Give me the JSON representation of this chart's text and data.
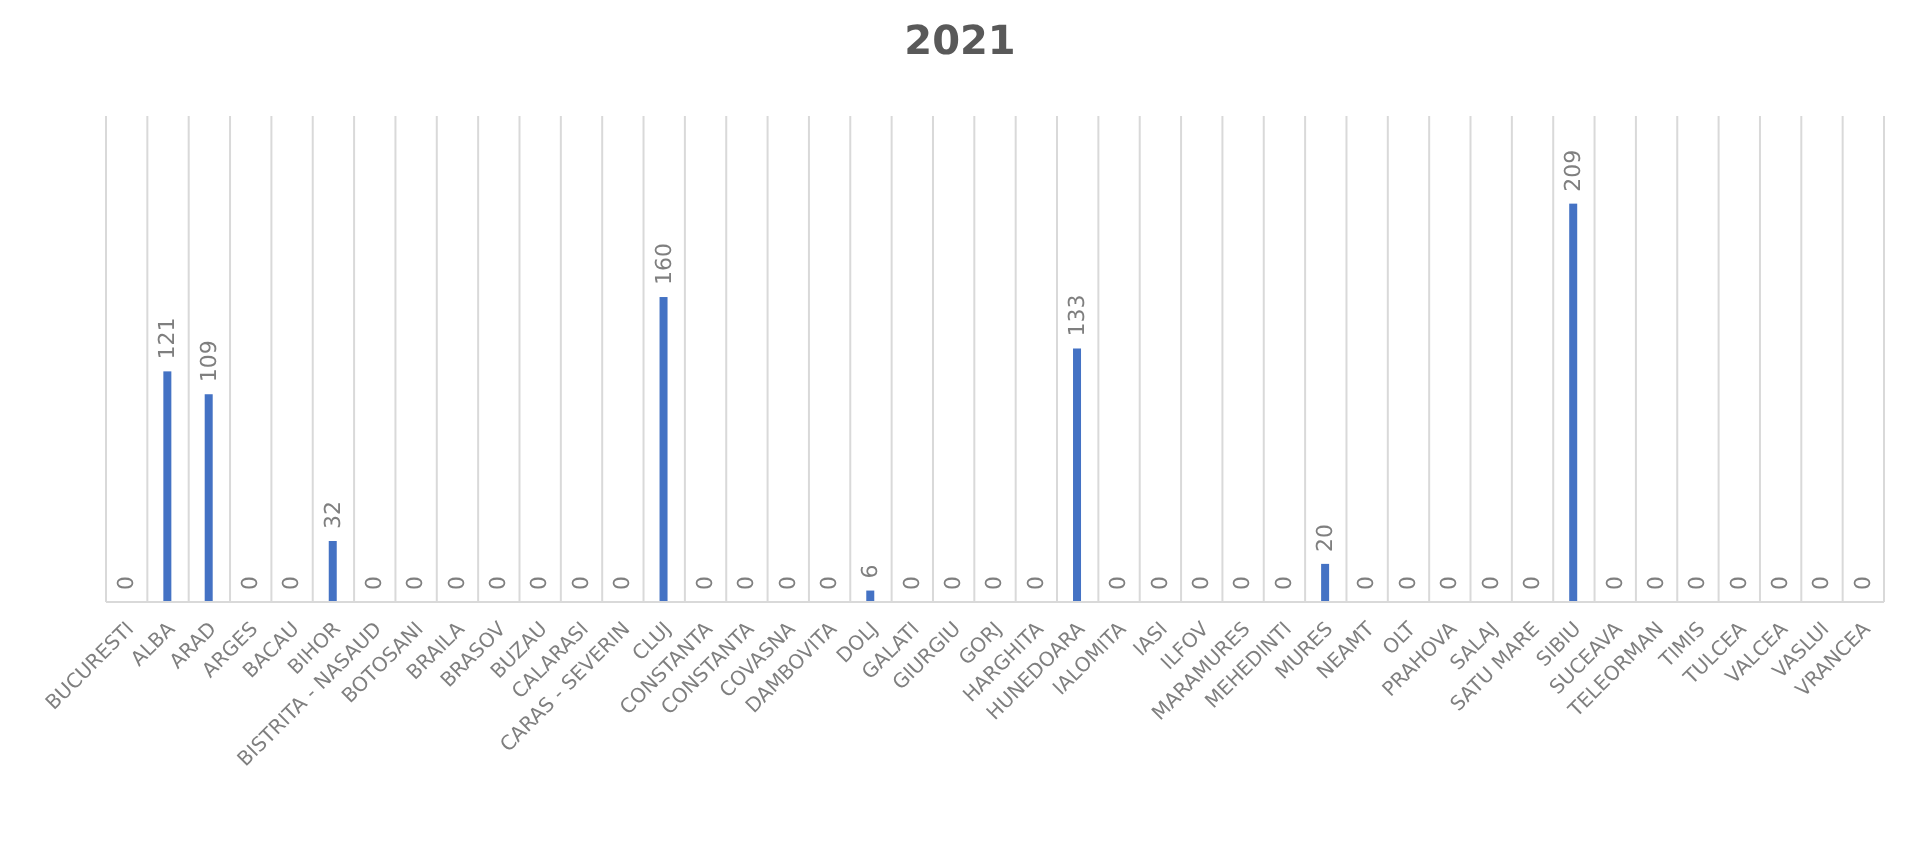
{
  "chart_data": {
    "type": "bar",
    "title": "2021",
    "categories": [
      "BUCURESTI",
      "ALBA",
      "ARAD",
      "ARGES",
      "BACAU",
      "BIHOR",
      "BISTRITA - NASAUD",
      "BOTOSANI",
      "BRAILA",
      "BRASOV",
      "BUZAU",
      "CALARASI",
      "CARAS - SEVERIN",
      "CLUJ",
      "CONSTANTA",
      "CONSTANTA",
      "COVASNA",
      "DAMBOVITA",
      "DOLJ",
      "GALATI",
      "GIURGIU",
      "GORJ",
      "HARGHITA",
      "HUNEDOARA",
      "IALOMITA",
      "IASI",
      "ILFOV",
      "MARAMURES",
      "MEHEDINTI",
      "MURES",
      "NEAMT",
      "OLT",
      "PRAHOVA",
      "SALAJ",
      "SATU MARE",
      "SIBIU",
      "SUCEAVA",
      "TELEORMAN",
      "TIMIS",
      "TULCEA",
      "VALCEA",
      "VASLUI",
      "VRANCEA"
    ],
    "values": [
      0,
      121,
      109,
      0,
      0,
      32,
      0,
      0,
      0,
      0,
      0,
      0,
      0,
      160,
      0,
      0,
      0,
      0,
      6,
      0,
      0,
      0,
      0,
      133,
      0,
      0,
      0,
      0,
      0,
      20,
      0,
      0,
      0,
      0,
      0,
      209,
      0,
      0,
      0,
      0,
      0,
      0,
      0
    ],
    "color": "#4472c4",
    "data_labels": true,
    "grid": "x",
    "tick_labels": "x"
  }
}
